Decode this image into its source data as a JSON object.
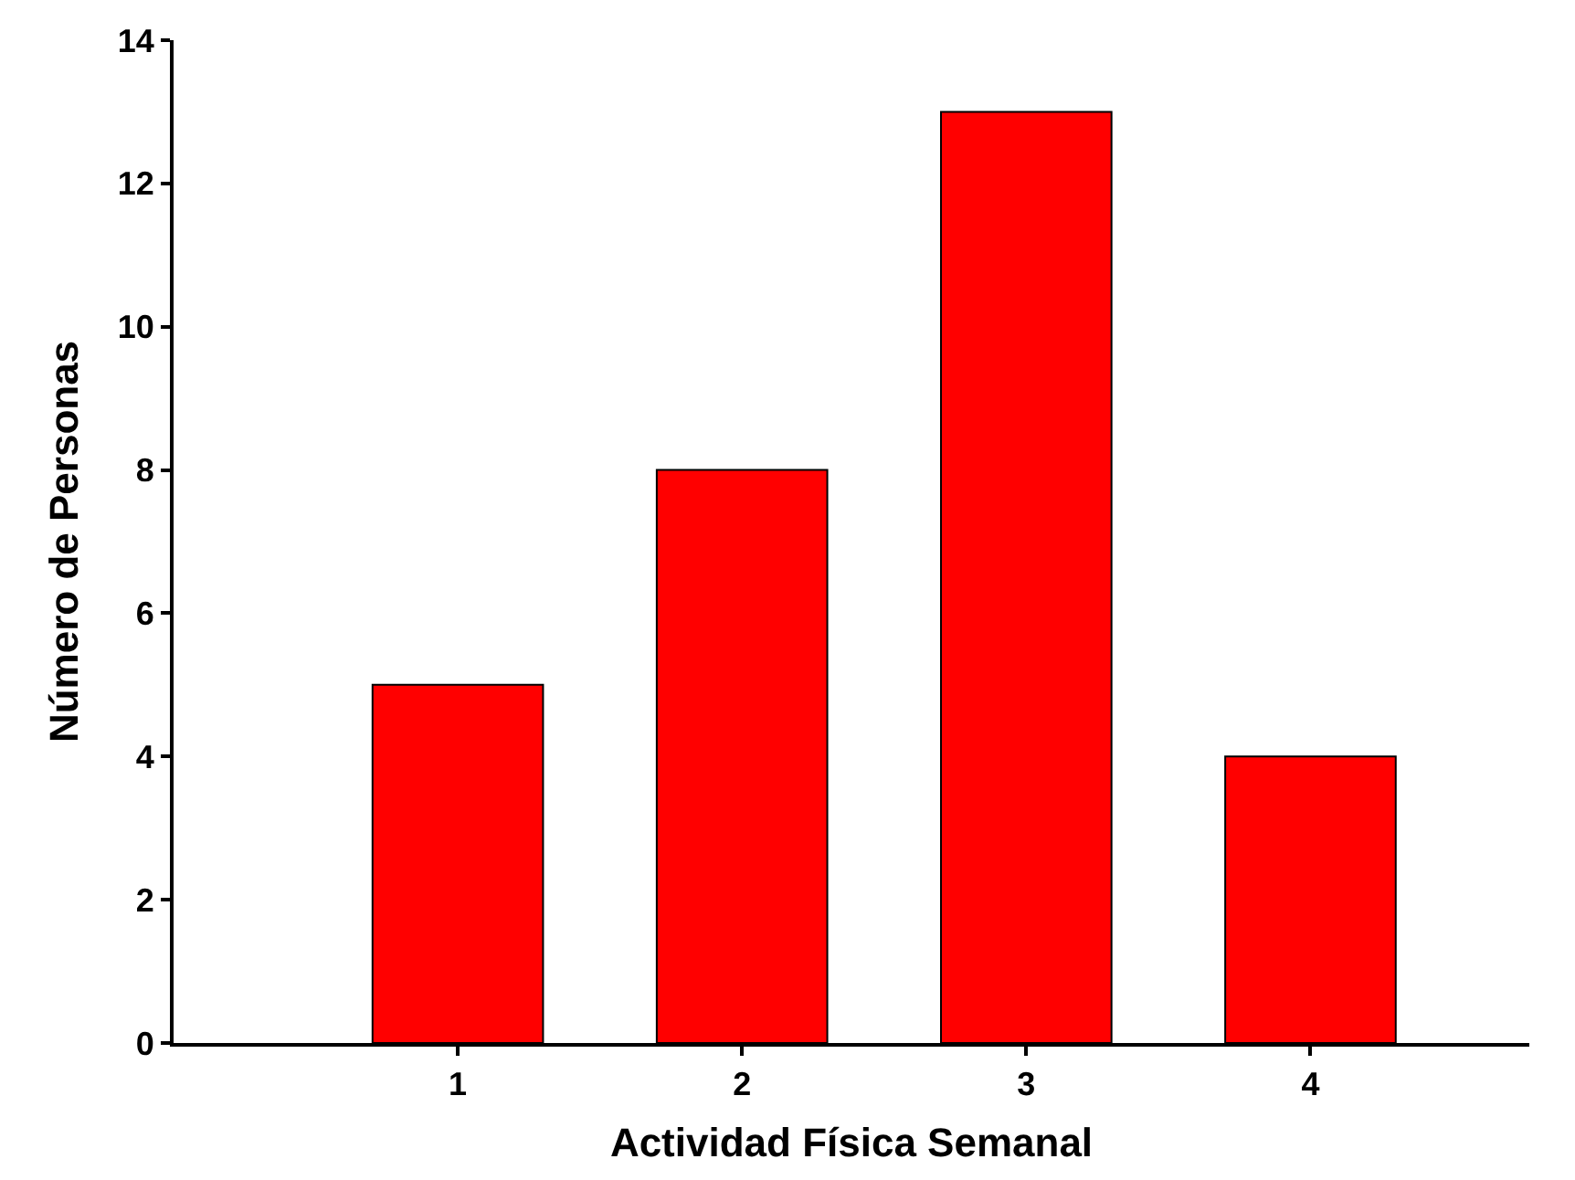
{
  "chart_data": {
    "type": "bar",
    "xlabel": "Actividad Física Semanal",
    "ylabel": "Número de Personas",
    "x": [
      1,
      2,
      3,
      4
    ],
    "values": [
      5,
      8,
      13,
      4
    ],
    "color": "#ff0000",
    "xlim": [
      0,
      4.77
    ],
    "xticks": [
      1,
      2,
      3,
      4
    ],
    "ylim": [
      0,
      14
    ],
    "yticks": [
      0,
      2,
      4,
      6,
      8,
      10,
      12,
      14
    ]
  }
}
